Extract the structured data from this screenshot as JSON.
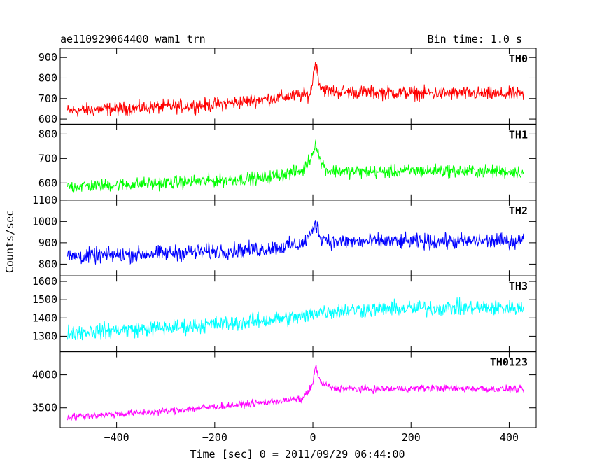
{
  "header": {
    "title": "ae110929064400_wam1_trn",
    "bin_time": "Bin time: 1.0 s"
  },
  "chart_data": {
    "type": "line",
    "xlabel": "Time [sec] 0 = 2011/09/29 06:44:00",
    "ylabel": "Counts/sec",
    "xlim": [
      -515,
      455
    ],
    "x_ticks": [
      -400,
      -200,
      0,
      200,
      400
    ],
    "x_tick_labels": [
      "−400",
      "−200",
      "0",
      "200",
      "400"
    ],
    "grid": false,
    "panels": [
      {
        "name": "TH0",
        "color": "#ff0000",
        "ylim": [
          575,
          945
        ],
        "y_ticks": [
          600,
          700,
          800,
          900
        ],
        "y_tick_labels": [
          "600",
          "700",
          "800",
          "900"
        ],
        "x": [
          -500,
          -400,
          -200,
          -50,
          -5,
          0,
          5,
          15,
          30,
          100,
          250,
          430
        ],
        "values": [
          640,
          650,
          670,
          710,
          720,
          800,
          880,
          760,
          735,
          730,
          725,
          720
        ],
        "noise": 50
      },
      {
        "name": "TH1",
        "color": "#00ff00",
        "ylim": [
          530,
          840
        ],
        "y_ticks": [
          600,
          700,
          800
        ],
        "y_tick_labels": [
          "600",
          "700",
          "800"
        ],
        "x": [
          -500,
          -300,
          -100,
          -20,
          0,
          5,
          15,
          30,
          100,
          250,
          430
        ],
        "values": [
          585,
          600,
          620,
          650,
          720,
          770,
          690,
          650,
          645,
          650,
          645
        ],
        "noise": 40
      },
      {
        "name": "TH2",
        "color": "#0000ff",
        "ylim": [
          745,
          1100
        ],
        "y_ticks": [
          800,
          900,
          1000,
          1100
        ],
        "y_tick_labels": [
          "800",
          "900",
          "1000",
          "1100"
        ],
        "x": [
          -500,
          -300,
          -100,
          -20,
          0,
          5,
          15,
          40,
          100,
          250,
          430
        ],
        "values": [
          835,
          850,
          870,
          895,
          950,
          1000,
          930,
          905,
          905,
          905,
          910
        ],
        "noise": 55
      },
      {
        "name": "TH3",
        "color": "#00ffff",
        "ylim": [
          1215,
          1630
        ],
        "y_ticks": [
          1300,
          1400,
          1500,
          1600
        ],
        "y_tick_labels": [
          "1300",
          "1400",
          "1500",
          "1600"
        ],
        "x": [
          -500,
          -300,
          -100,
          -10,
          0,
          50,
          150,
          300,
          430
        ],
        "values": [
          1320,
          1345,
          1385,
          1410,
          1430,
          1440,
          1450,
          1455,
          1455
        ],
        "noise": 65
      },
      {
        "name": "TH0123",
        "color": "#ff00ff",
        "ylim": [
          3200,
          4350
        ],
        "y_ticks": [
          3500,
          4000
        ],
        "y_tick_labels": [
          "3500",
          "4000"
        ],
        "x": [
          -500,
          -300,
          -100,
          -20,
          0,
          5,
          15,
          40,
          100,
          250,
          430
        ],
        "values": [
          3360,
          3450,
          3580,
          3640,
          3850,
          4150,
          3880,
          3800,
          3780,
          3800,
          3780
        ],
        "noise": 80
      }
    ]
  }
}
